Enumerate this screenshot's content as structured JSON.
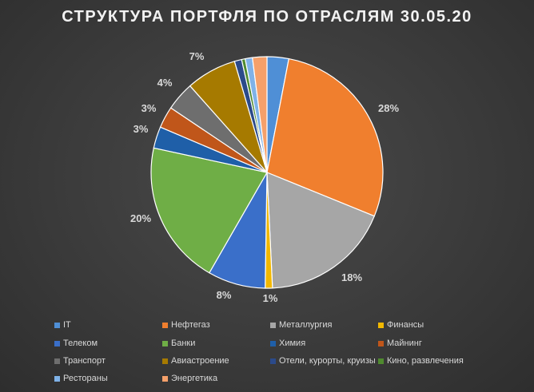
{
  "chart_data": {
    "type": "pie",
    "title": "СТРУКТУРА ПОРТФЛЯ ПО ОТРАСЛЯМ 30.05.20",
    "categories": [
      "IT",
      "Нефтегаз",
      "Металлургия",
      "Финансы",
      "Телеком",
      "Банки",
      "Химия",
      "Майнинг",
      "Транспорт",
      "Авиастроение",
      "Отели, курорты, круизы",
      "Кино, развлечения",
      "Рестораны",
      "Энергетика"
    ],
    "values": [
      3,
      28,
      18,
      1,
      8,
      20,
      3,
      3,
      4,
      7,
      1,
      0.5,
      1,
      2
    ],
    "data_labels": [
      "",
      "28%",
      "18%",
      "1%",
      "8%",
      "20%",
      "3%",
      "3%",
      "4%",
      "7%",
      "",
      "",
      "",
      ""
    ],
    "colors": [
      "#4f8fd6",
      "#f07f2e",
      "#a6a6a6",
      "#f2b800",
      "#3a6fc9",
      "#6fae46",
      "#1f5fa8",
      "#c0561a",
      "#6e6e6e",
      "#a67a00",
      "#2b4a8a",
      "#4f8a2f",
      "#7fb2e8",
      "#f5a06a"
    ],
    "legend_position": "bottom"
  }
}
